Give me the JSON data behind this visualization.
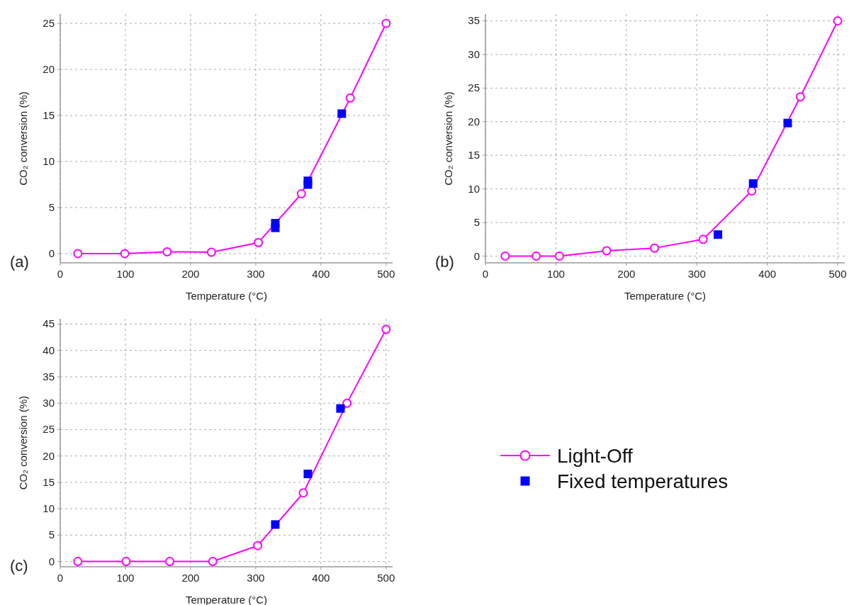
{
  "chart_data": [
    {
      "type": "line",
      "xlabel": "Temperature (°C)",
      "ylabel": "CO₂ conversion (%)",
      "annotations": [
        "(a)"
      ],
      "xlim": [
        0,
        510
      ],
      "xticks": [
        0,
        100,
        200,
        300,
        400,
        500
      ],
      "ylim": [
        -1,
        26
      ],
      "yticks": [
        0,
        5,
        10,
        15,
        20,
        25
      ],
      "grid": true,
      "series": [
        {
          "marker": "circle",
          "color": "#ff00ff",
          "x": [
            27,
            99,
            164,
            232,
            304,
            370,
            445,
            500
          ],
          "values": [
            0,
            0,
            0.2,
            0.15,
            1.2,
            6.5,
            16.9,
            25
          ]
        },
        {
          "type": "scatter",
          "marker": "square",
          "color": "#0000ff",
          "x": [
            330,
            330,
            380,
            380,
            432
          ],
          "values": [
            2.8,
            3.3,
            7.5,
            7.9,
            15.2
          ]
        }
      ]
    },
    {
      "type": "line",
      "xlabel": "Temperature (°C)",
      "ylabel": "CO₂ conversion (%)",
      "annotations": [
        "(b)"
      ],
      "xlim": [
        0,
        510
      ],
      "xticks": [
        0,
        100,
        200,
        300,
        400,
        500
      ],
      "ylim": [
        -1,
        36
      ],
      "yticks": [
        0,
        5,
        10,
        15,
        20,
        25,
        30,
        35
      ],
      "grid": true,
      "series": [
        {
          "marker": "circle",
          "color": "#ff00ff",
          "x": [
            28,
            72,
            105,
            172,
            240,
            309,
            378,
            447,
            500
          ],
          "values": [
            0,
            0,
            0,
            0.8,
            1.2,
            2.5,
            9.7,
            23.7,
            35
          ]
        },
        {
          "type": "scatter",
          "marker": "square",
          "color": "#0000ff",
          "x": [
            330,
            380,
            429
          ],
          "values": [
            3.2,
            10.8,
            19.8
          ]
        }
      ]
    },
    {
      "type": "line",
      "xlabel": "Temperature (°C)",
      "ylabel": "CO₂ conversion (%)",
      "annotations": [
        "(c)"
      ],
      "xlim": [
        0,
        510
      ],
      "xticks": [
        0,
        100,
        200,
        300,
        400,
        500
      ],
      "ylim": [
        -1,
        46
      ],
      "yticks": [
        0,
        5,
        10,
        15,
        20,
        25,
        30,
        35,
        40,
        45
      ],
      "grid": true,
      "legend": "right",
      "series": [
        {
          "name": "Light-Off",
          "marker": "circle",
          "color": "#ff00ff",
          "x": [
            27,
            101,
            168,
            234,
            303,
            373,
            440,
            500
          ],
          "values": [
            0,
            0,
            0,
            0,
            3,
            13,
            30,
            44
          ]
        },
        {
          "name": "Fixed temperatures",
          "type": "scatter",
          "marker": "square",
          "color": "#0000ff",
          "x": [
            330,
            380,
            430
          ],
          "values": [
            7,
            16.6,
            29
          ]
        }
      ]
    }
  ]
}
